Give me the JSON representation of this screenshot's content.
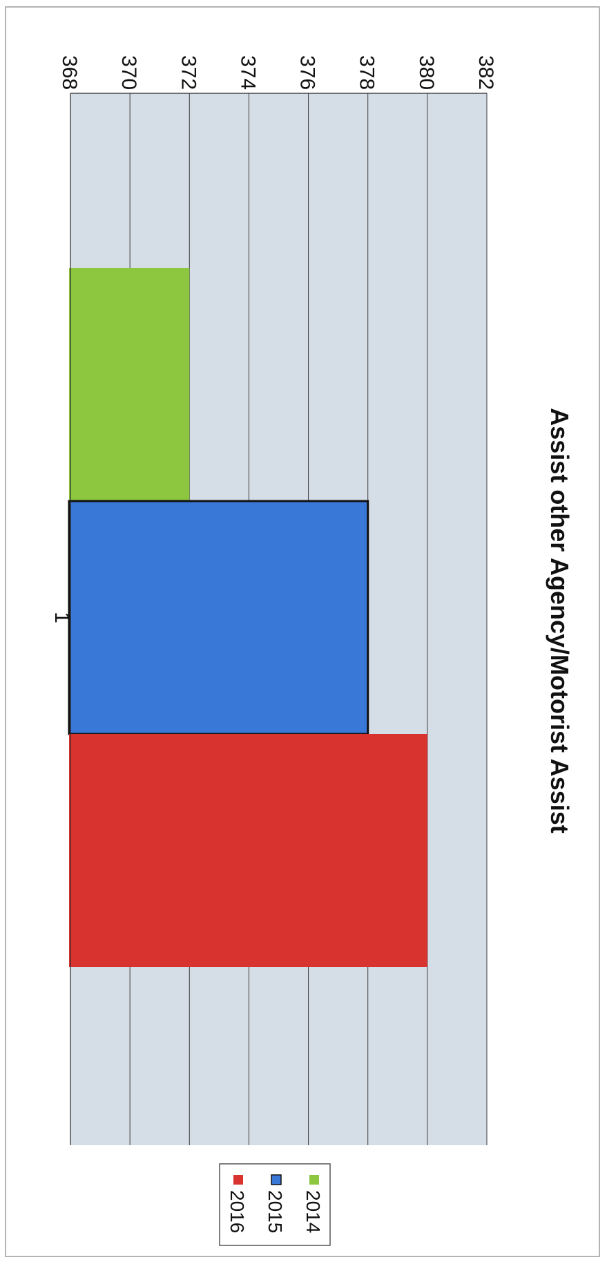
{
  "chart_data": {
    "type": "bar",
    "title": "Assist other Agency/Motorist Assist",
    "categories": [
      "1"
    ],
    "series": [
      {
        "name": "2014",
        "values": [
          372
        ],
        "color": "#8dc63f"
      },
      {
        "name": "2015",
        "values": [
          378
        ],
        "color": "#3a78d8"
      },
      {
        "name": "2016",
        "values": [
          380
        ],
        "color": "#d93330"
      }
    ],
    "ylim": [
      368,
      382
    ],
    "ticks": [
      368,
      370,
      372,
      374,
      376,
      378,
      380,
      382
    ],
    "grid": true,
    "legend_position": "right"
  }
}
